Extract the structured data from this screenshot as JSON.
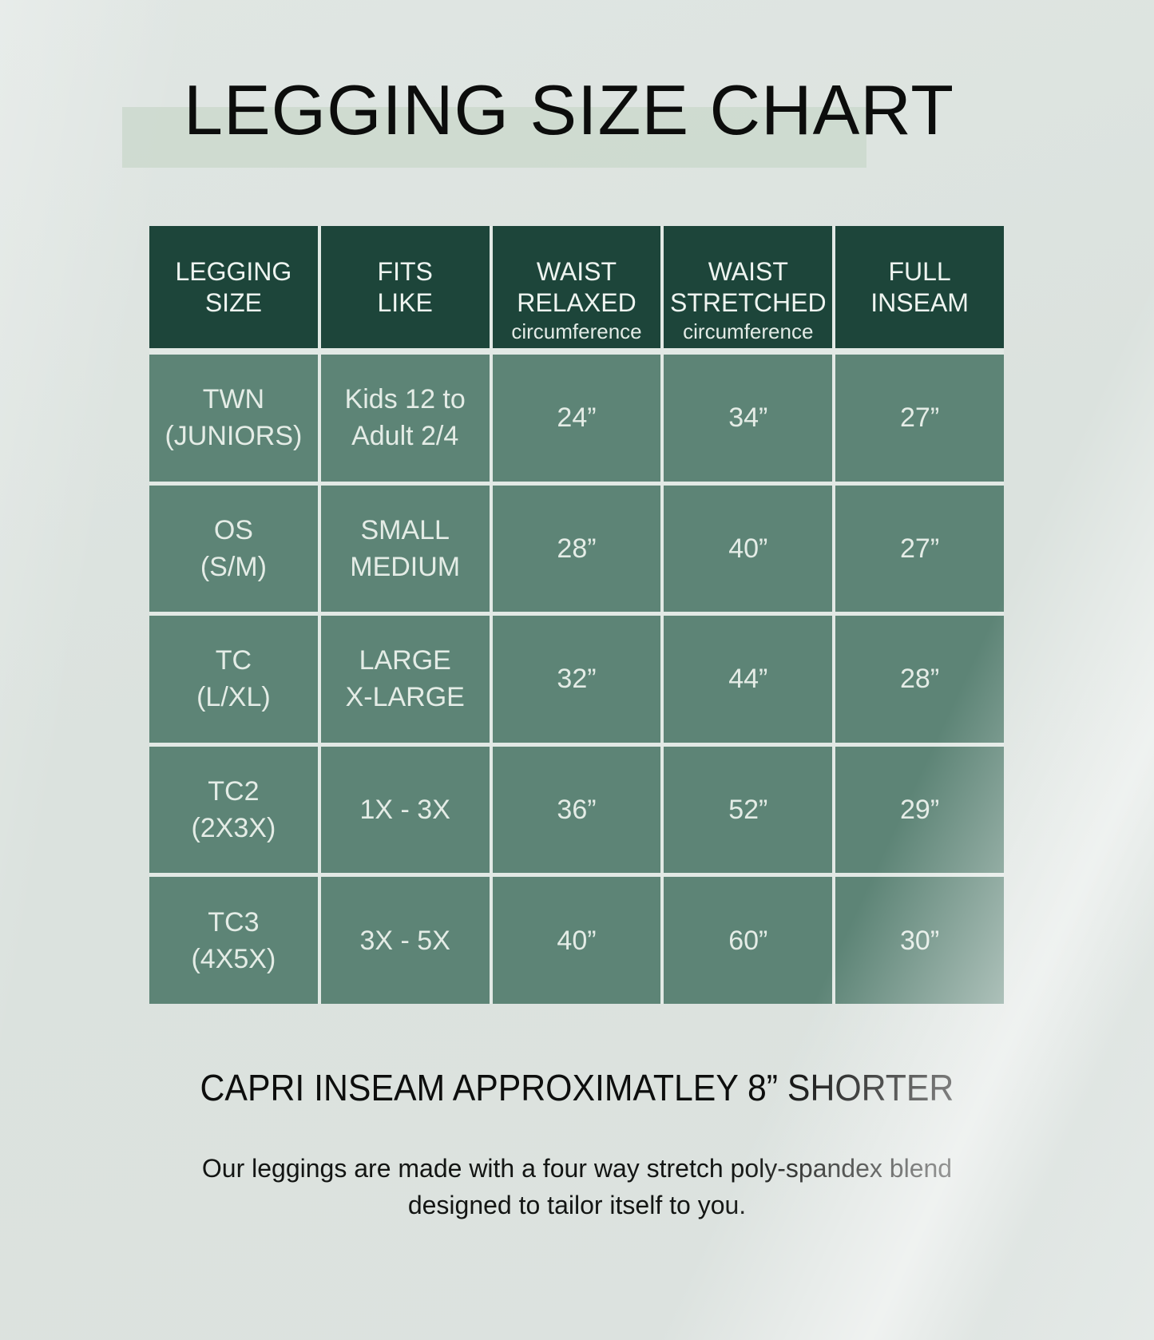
{
  "page": {
    "title": "LEGGING SIZE CHART",
    "capri_note": "CAPRI INSEAM APPROXIMATLEY 8” SHORTER",
    "description": [
      "Our leggings are made with a four way stretch poly-spandex blend",
      "designed to tailor itself to you."
    ]
  },
  "table": {
    "columns": [
      {
        "line1": "LEGGING",
        "line2": "SIZE",
        "sub": ""
      },
      {
        "line1": "FITS",
        "line2": "LIKE",
        "sub": ""
      },
      {
        "line1": "WAIST",
        "line2": "RELAXED",
        "sub": "circumference"
      },
      {
        "line1": "WAIST",
        "line2": "STRETCHED",
        "sub": "circumference"
      },
      {
        "line1": "FULL",
        "line2": "INSEAM",
        "sub": ""
      }
    ],
    "rows": [
      {
        "size": [
          "TWN",
          "(JUNIORS)"
        ],
        "fits": [
          "Kids 12 to",
          "Adult 2/4"
        ],
        "waist_relaxed": "24”",
        "waist_stretched": "34”",
        "full_inseam": "27”"
      },
      {
        "size": [
          "OS",
          "(S/M)"
        ],
        "fits": [
          "SMALL",
          "MEDIUM"
        ],
        "waist_relaxed": "28”",
        "waist_stretched": "40”",
        "full_inseam": "27”"
      },
      {
        "size": [
          "TC",
          "(L/XL)"
        ],
        "fits": [
          "LARGE",
          "X-LARGE"
        ],
        "waist_relaxed": "32”",
        "waist_stretched": "44”",
        "full_inseam": "28”"
      },
      {
        "size": [
          "TC2",
          "(2X3X)"
        ],
        "fits": [
          "1X - 3X",
          ""
        ],
        "waist_relaxed": "36”",
        "waist_stretched": "52”",
        "full_inseam": "29”"
      },
      {
        "size": [
          "TC3",
          "(4X5X)"
        ],
        "fits": [
          "3X - 5X",
          ""
        ],
        "waist_relaxed": "40”",
        "waist_stretched": "60”",
        "full_inseam": "30”"
      }
    ]
  },
  "colors": {
    "page_bg": "#dce2df",
    "title_text": "#0c0d0c",
    "title_highlight": "#cbd8cc",
    "header_bg": "#1d453a",
    "header_text": "#eef4f0",
    "row_bg": "#5d8476",
    "row_text": "#e4ece6",
    "grid_line": "#e2e9e5"
  }
}
